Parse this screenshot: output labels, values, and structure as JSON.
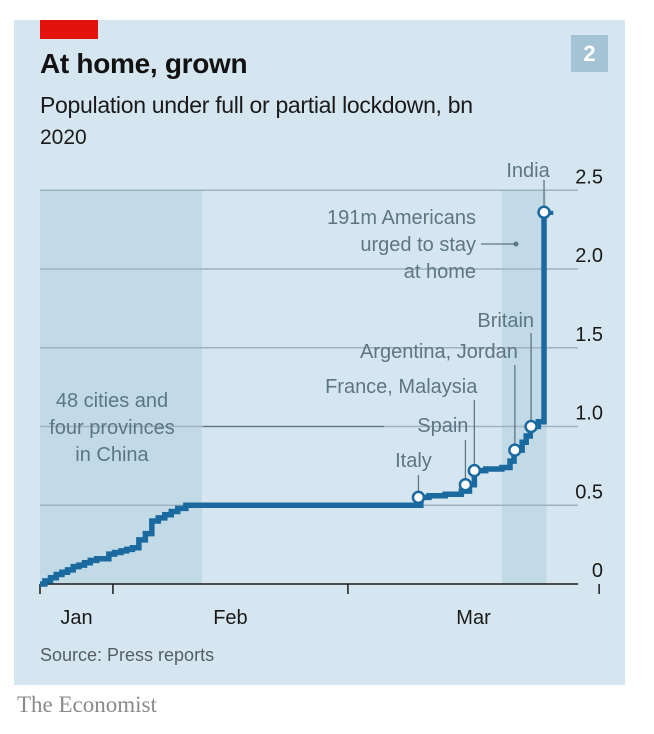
{
  "header": {
    "title": "At home, grown",
    "subtitle": "Population under full or partial lockdown, bn",
    "year": "2020",
    "badge": "2"
  },
  "footer": {
    "source": "Source: Press reports",
    "brand": "The Economist"
  },
  "colors": {
    "panel_bg": "#d6e6f0",
    "shade": "#c2d9e6",
    "line": "#1a6aa0",
    "accent_red": "#e3120b",
    "annotation": "#5d7684",
    "grid": "#9eb3bf"
  },
  "chart_data": {
    "type": "line",
    "step": true,
    "title": "At home, grown",
    "subtitle": "Population under full or partial lockdown, bn",
    "xlabel": "",
    "ylabel": "bn",
    "x_unit": "days since Jan 1st 2020",
    "xlim": [
      22,
      91
    ],
    "ylim": [
      0,
      2.5
    ],
    "y_ticks": [
      0,
      0.5,
      1.0,
      1.5,
      2.0,
      2.5
    ],
    "y_tick_labels": [
      "0",
      "0.5",
      "1.0",
      "1.5",
      "2.0",
      "2.5"
    ],
    "x_ticks": [
      22,
      31,
      60,
      91
    ],
    "x_tick_labels": [
      {
        "label": "Jan",
        "at": 26.5
      },
      {
        "label": "Feb",
        "at": 45.5
      },
      {
        "label": "Mar",
        "at": 75.5
      }
    ],
    "y_axis_side": "right",
    "grid": true,
    "shaded_ranges": [
      [
        22,
        42
      ],
      [
        79,
        84.5
      ]
    ],
    "series": [
      {
        "name": "Population under lockdown",
        "points": [
          [
            22,
            0.0
          ],
          [
            22.6,
            0.02
          ],
          [
            23.3,
            0.04
          ],
          [
            24,
            0.06
          ],
          [
            24.7,
            0.075
          ],
          [
            25.4,
            0.09
          ],
          [
            26.1,
            0.11
          ],
          [
            26.8,
            0.12
          ],
          [
            27.5,
            0.135
          ],
          [
            28.2,
            0.15
          ],
          [
            29,
            0.16
          ],
          [
            30.5,
            0.19
          ],
          [
            31.2,
            0.2
          ],
          [
            32,
            0.21
          ],
          [
            32.7,
            0.22
          ],
          [
            33.4,
            0.23
          ],
          [
            34.2,
            0.28
          ],
          [
            35,
            0.32
          ],
          [
            35.8,
            0.4
          ],
          [
            36.6,
            0.42
          ],
          [
            37.4,
            0.44
          ],
          [
            38.2,
            0.46
          ],
          [
            39,
            0.48
          ],
          [
            40,
            0.5
          ],
          [
            68,
            0.5
          ],
          [
            69,
            0.55
          ],
          [
            70,
            0.56
          ],
          [
            72,
            0.57
          ],
          [
            74,
            0.59
          ],
          [
            75,
            0.63
          ],
          [
            75.6,
            0.72
          ],
          [
            77,
            0.73
          ],
          [
            79,
            0.74
          ],
          [
            80,
            0.78
          ],
          [
            80.5,
            0.85
          ],
          [
            81.5,
            0.9
          ],
          [
            82,
            0.94
          ],
          [
            82.5,
            1.0
          ],
          [
            83.5,
            1.03
          ],
          [
            84.2,
            2.36
          ],
          [
            85,
            2.37
          ]
        ]
      }
    ],
    "annotations": [
      {
        "label": "48 cities and four provinces in China",
        "x": 32,
        "y": 1.0
      },
      {
        "label": "Italy",
        "x": 68.7,
        "y": 0.55
      },
      {
        "label": "Spain",
        "x": 74.5,
        "y": 0.63
      },
      {
        "label": "France, Malaysia",
        "x": 75.6,
        "y": 0.72
      },
      {
        "label": "Argentina, Jordan",
        "x": 80.6,
        "y": 0.85
      },
      {
        "label": "Britain",
        "x": 82.6,
        "y": 1.0
      },
      {
        "label": "191m Americans urged to stay at home",
        "x": 81.5,
        "y": 2.2
      },
      {
        "label": "India",
        "x": 84.2,
        "y": 2.36
      }
    ]
  }
}
